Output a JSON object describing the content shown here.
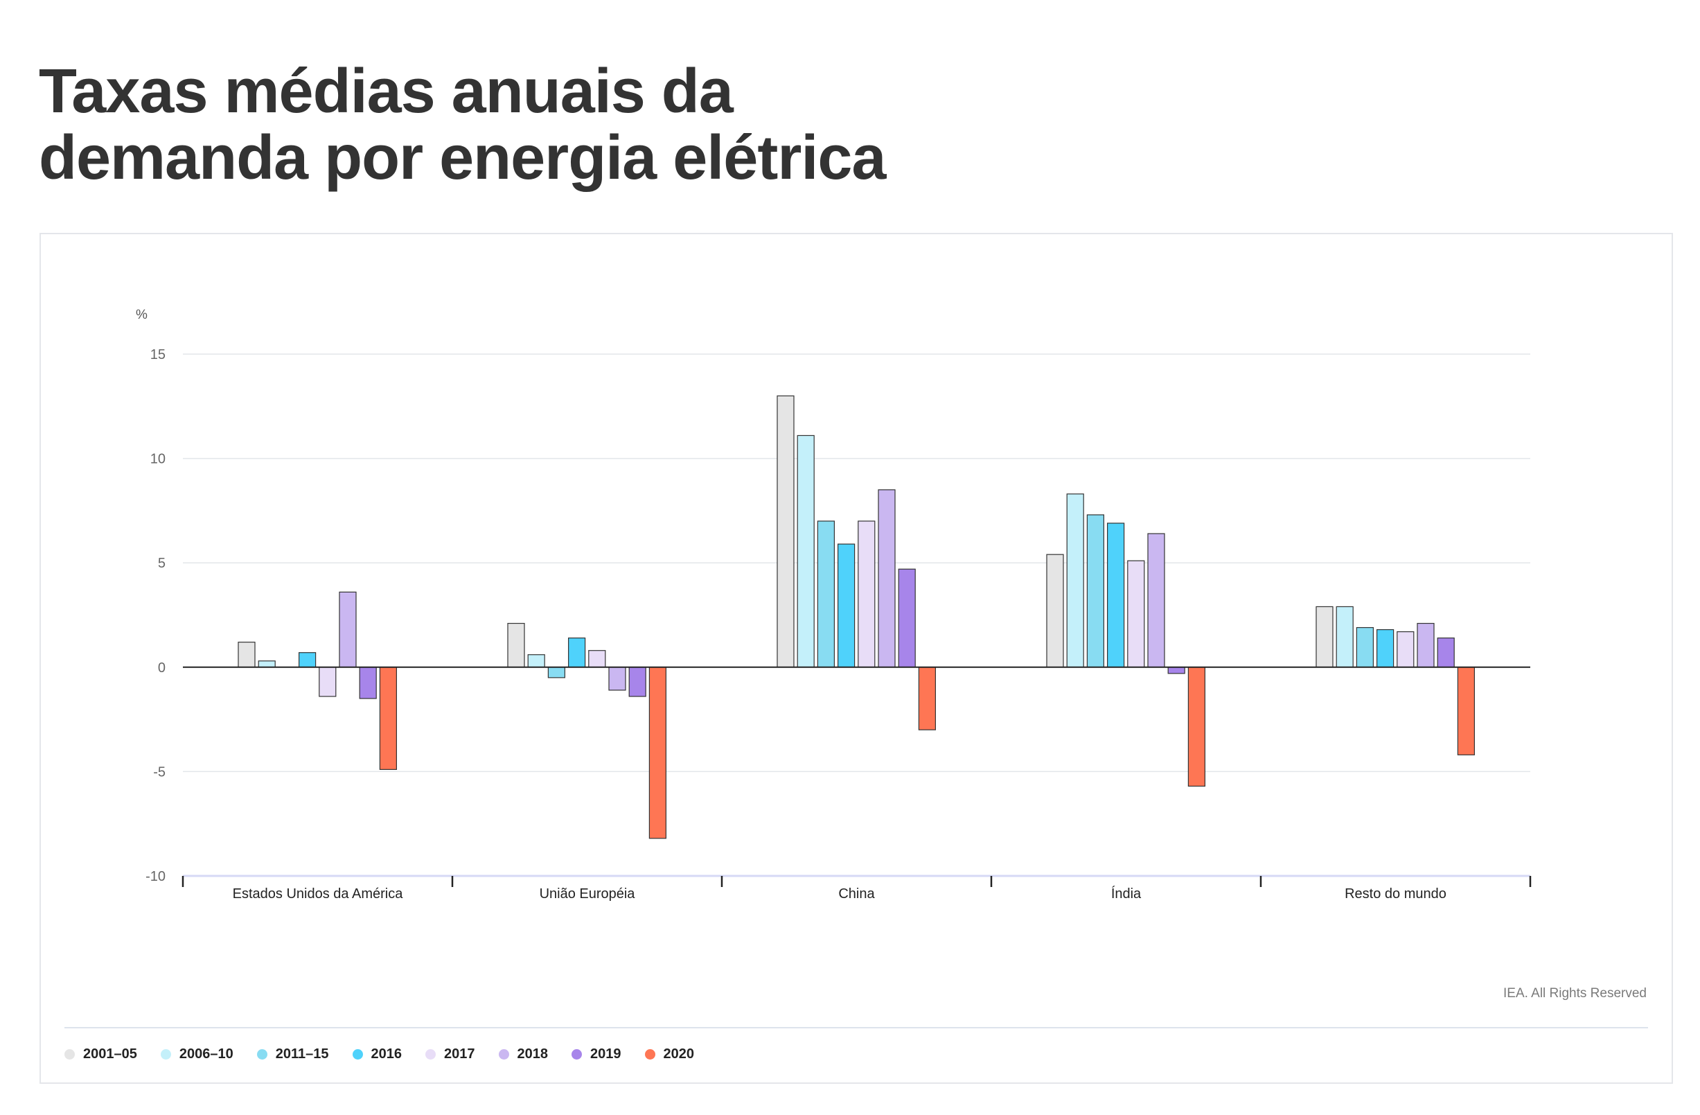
{
  "title_lines": [
    "Taxas médias anuais da",
    "demanda por energia elétrica"
  ],
  "credit": "IEA. All Rights Reserved",
  "legend": [
    {
      "label": "2001–05",
      "color": "#e5e5e5"
    },
    {
      "label": "2006–10",
      "color": "#c4f0fa"
    },
    {
      "label": "2011–15",
      "color": "#88dcf2"
    },
    {
      "label": "2016",
      "color": "#4fd2fb"
    },
    {
      "label": "2017",
      "color": "#e8ddf7"
    },
    {
      "label": "2018",
      "color": "#cab7f1"
    },
    {
      "label": "2019",
      "color": "#a785ea"
    },
    {
      "label": "2020",
      "color": "#fe7654"
    }
  ],
  "chart_data": {
    "type": "bar",
    "title": "Taxas médias anuais da demanda por energia elétrica",
    "ylabel": "%",
    "xlabel": "",
    "ylim": [
      -10,
      15
    ],
    "yticks": [
      15,
      10,
      5,
      0,
      -5,
      -10
    ],
    "grid": true,
    "legend_position": "bottom-left",
    "categories": [
      "Estados Unidos da América",
      "União Européia",
      "China",
      "Índia",
      "Resto do mundo"
    ],
    "series": [
      {
        "name": "2001–05",
        "color": "#e5e5e5",
        "values": [
          1.2,
          2.1,
          13.0,
          5.4,
          2.9
        ]
      },
      {
        "name": "2006–10",
        "color": "#c4f0fa",
        "values": [
          0.3,
          0.6,
          11.1,
          8.3,
          2.9
        ]
      },
      {
        "name": "2011–15",
        "color": "#88dcf2",
        "values": [
          0.0,
          -0.5,
          7.0,
          7.3,
          1.9
        ]
      },
      {
        "name": "2016",
        "color": "#4fd2fb",
        "values": [
          0.7,
          1.4,
          5.9,
          6.9,
          1.8
        ]
      },
      {
        "name": "2017",
        "color": "#e8ddf7",
        "values": [
          -1.4,
          0.8,
          7.0,
          5.1,
          1.7
        ]
      },
      {
        "name": "2018",
        "color": "#cab7f1",
        "values": [
          3.6,
          -1.1,
          8.5,
          6.4,
          2.1
        ]
      },
      {
        "name": "2019",
        "color": "#a785ea",
        "values": [
          -1.5,
          -1.4,
          4.7,
          -0.3,
          1.4
        ]
      },
      {
        "name": "2020",
        "color": "#fe7654",
        "values": [
          -4.9,
          -8.2,
          -3.0,
          -5.7,
          -4.2
        ]
      }
    ]
  }
}
